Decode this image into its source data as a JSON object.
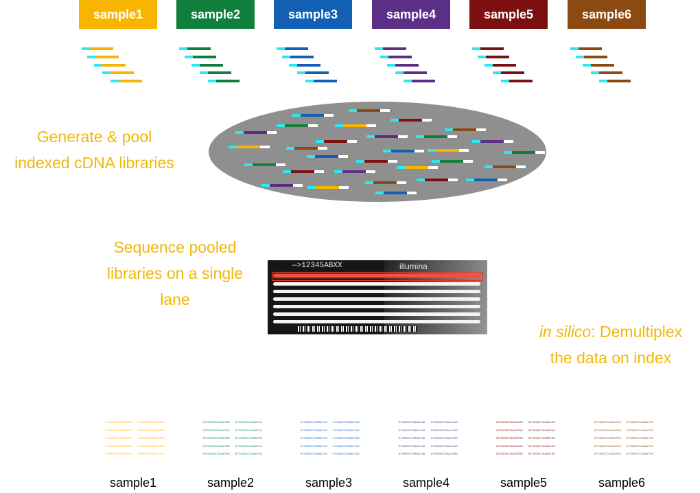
{
  "samples": [
    {
      "label": "sample1",
      "color": "#f7b500"
    },
    {
      "label": "sample2",
      "color": "#0f7f3b"
    },
    {
      "label": "sample3",
      "color": "#1260b4"
    },
    {
      "label": "sample4",
      "color": "#5b2f86"
    },
    {
      "label": "sample5",
      "color": "#7c1010"
    },
    {
      "label": "sample6",
      "color": "#8b4a11"
    }
  ],
  "index_color": "#2ee8f0",
  "adapter_color": "#ffffff",
  "captions": {
    "pool_line1": "Generate & pool",
    "pool_line2": "indexed cDNA libraries",
    "seq_line1": "Sequence pooled",
    "seq_line2": "libraries on a single",
    "seq_line3": "lane",
    "demux_italic": "in silico",
    "demux_rest": ": Demultiplex",
    "demux_line2": "the data on index"
  },
  "flowcell": {
    "id": "—>12345ABXX",
    "brand": "illumina"
  },
  "read_text": "ATGGGGCCGAAATAG",
  "bottom_labels": [
    "sample1",
    "sample2",
    "sample3",
    "sample4",
    "sample5",
    "sample6"
  ]
}
